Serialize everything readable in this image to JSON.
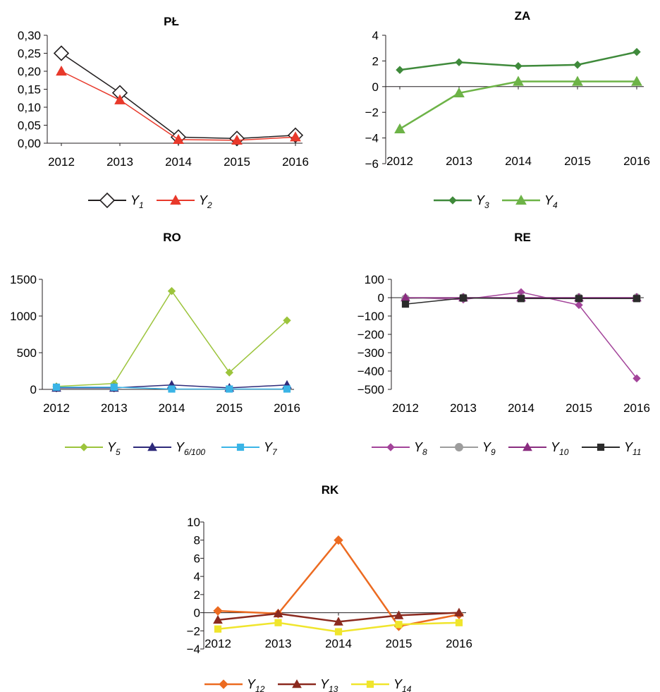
{
  "chart_data": [
    {
      "id": "pl",
      "type": "line",
      "title": "PŁ",
      "categories": [
        "2012",
        "2013",
        "2014",
        "2015",
        "2016"
      ],
      "ylim": [
        0,
        0.3
      ],
      "yticks": [
        0,
        0.05,
        0.1,
        0.15,
        0.2,
        0.25,
        0.3
      ],
      "ytick_labels": [
        "0,00",
        "0,05",
        "0,10",
        "0,15",
        "0,20",
        "0,25",
        "0,30"
      ],
      "series": [
        {
          "name": "Y",
          "sub": "1",
          "color": "#231f20",
          "marker": "diamond-open",
          "values": [
            0.25,
            0.14,
            0.017,
            0.013,
            0.022
          ]
        },
        {
          "name": "Y",
          "sub": "2",
          "color": "#e8392b",
          "marker": "triangle",
          "values": [
            0.2,
            0.12,
            0.01,
            0.008,
            0.017
          ]
        }
      ]
    },
    {
      "id": "za",
      "type": "line",
      "title": "ZA",
      "categories": [
        "2012",
        "2013",
        "2014",
        "2015",
        "2016"
      ],
      "ylim": [
        -6,
        4
      ],
      "yticks": [
        -6,
        -4,
        -2,
        0,
        2,
        4
      ],
      "ytick_labels": [
        "−6",
        "−4",
        "−2",
        "0",
        "2",
        "4"
      ],
      "series": [
        {
          "name": "Y",
          "sub": "3",
          "color": "#3f8a3b",
          "marker": "diamond",
          "values": [
            1.3,
            1.9,
            1.6,
            1.7,
            2.7
          ]
        },
        {
          "name": "Y",
          "sub": "4",
          "color": "#6db347",
          "marker": "triangle",
          "values": [
            -3.3,
            -0.5,
            0.4,
            0.4,
            0.4
          ]
        }
      ]
    },
    {
      "id": "ro",
      "type": "line",
      "title": "RO",
      "categories": [
        "2012",
        "2013",
        "2014",
        "2015",
        "2016"
      ],
      "ylim": [
        0,
        1500
      ],
      "yticks": [
        0,
        500,
        1000,
        1500
      ],
      "ytick_labels": [
        "0",
        "500",
        "1000",
        "1500"
      ],
      "series": [
        {
          "name": "Y",
          "sub": "5",
          "color": "#9cc43c",
          "marker": "diamond",
          "values": [
            40,
            80,
            1340,
            230,
            940
          ]
        },
        {
          "name": "Y",
          "sub": "6/100",
          "color": "#2e2a7a",
          "marker": "triangle",
          "values": [
            20,
            20,
            60,
            20,
            60
          ]
        },
        {
          "name": "Y",
          "sub": "7",
          "color": "#3ab4e6",
          "marker": "square",
          "values": [
            30,
            30,
            5,
            5,
            5
          ]
        }
      ]
    },
    {
      "id": "re",
      "type": "line",
      "title": "RE",
      "categories": [
        "2012",
        "2013",
        "2014",
        "2015",
        "2016"
      ],
      "ylim": [
        -500,
        100
      ],
      "yticks": [
        -500,
        -400,
        -300,
        -200,
        -100,
        0,
        100
      ],
      "ytick_labels": [
        "−500",
        "−400",
        "−300",
        "−200",
        "−100",
        "0",
        "100"
      ],
      "series": [
        {
          "name": "Y",
          "sub": "8",
          "color": "#a3449a",
          "marker": "diamond",
          "values": [
            0,
            -10,
            30,
            -40,
            -440
          ]
        },
        {
          "name": "Y",
          "sub": "9",
          "color": "#9d9d9d",
          "marker": "circle",
          "values": [
            -5,
            0,
            0,
            0,
            0
          ]
        },
        {
          "name": "Y",
          "sub": "10",
          "color": "#8a2d80",
          "marker": "triangle",
          "values": [
            0,
            0,
            0,
            0,
            0
          ]
        },
        {
          "name": "Y",
          "sub": "11",
          "color": "#2b2b2b",
          "marker": "square",
          "values": [
            -35,
            -2,
            -5,
            -5,
            -5
          ]
        }
      ]
    },
    {
      "id": "rk",
      "type": "line",
      "title": "RK",
      "categories": [
        "2012",
        "2013",
        "2014",
        "2015",
        "2016"
      ],
      "ylim": [
        -4,
        10
      ],
      "yticks": [
        -4,
        -2,
        0,
        2,
        4,
        6,
        8,
        10
      ],
      "ytick_labels": [
        "−4",
        "−2",
        "0",
        "2",
        "4",
        "6",
        "8",
        "10"
      ],
      "series": [
        {
          "name": "Y",
          "sub": "12",
          "color": "#ec6b21",
          "marker": "diamond",
          "values": [
            0.2,
            -0.1,
            8.0,
            -1.5,
            -0.2
          ]
        },
        {
          "name": "Y",
          "sub": "13",
          "color": "#8b2a1f",
          "marker": "triangle",
          "values": [
            -0.8,
            -0.1,
            -1.0,
            -0.3,
            0.0
          ]
        },
        {
          "name": "Y",
          "sub": "14",
          "color": "#f0e52c",
          "marker": "square",
          "values": [
            -1.8,
            -1.1,
            -2.1,
            -1.3,
            -1.1
          ]
        }
      ]
    }
  ]
}
